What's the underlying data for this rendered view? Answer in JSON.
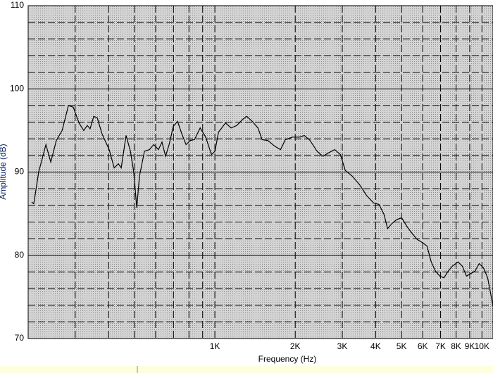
{
  "chart_data": {
    "type": "line",
    "x_label": "Frequency (Hz)",
    "y_label": "Amplitude (dB)",
    "x_scale": "log",
    "color": "#000000",
    "xlim": [
      200,
      11000
    ],
    "ylim": [
      70,
      110
    ],
    "xticks": [
      {
        "value": 1000,
        "label": "1K"
      },
      {
        "value": 2000,
        "label": "2K"
      },
      {
        "value": 3000,
        "label": "3K"
      },
      {
        "value": 4000,
        "label": "4K"
      },
      {
        "value": 5000,
        "label": "5K"
      },
      {
        "value": 6000,
        "label": "6K"
      },
      {
        "value": 7000,
        "label": "7K"
      },
      {
        "value": 8000,
        "label": "8K"
      },
      {
        "value": 9000,
        "label": "9K"
      },
      {
        "value": 10000,
        "label": "10K"
      }
    ],
    "x_minor_ticks": [
      200,
      300,
      400,
      500,
      600,
      700,
      800,
      900
    ],
    "yticks": [
      70,
      80,
      90,
      100,
      110
    ],
    "y_minor_ticks": [
      72,
      74,
      76,
      78,
      82,
      84,
      86,
      88,
      92,
      94,
      96,
      98,
      102,
      104,
      106,
      108
    ],
    "grid": true,
    "x": [
      206,
      210,
      219,
      233,
      243,
      255,
      268,
      283,
      295,
      310,
      323,
      333,
      341,
      352,
      363,
      378,
      402,
      420,
      435,
      446,
      465,
      483,
      497,
      510,
      522,
      545,
      569,
      590,
      615,
      634,
      654,
      674,
      699,
      725,
      752,
      780,
      809,
      839,
      881,
      924,
      971,
      1001,
      1032,
      1096,
      1151,
      1208,
      1268,
      1315,
      1381,
      1450,
      1503,
      1578,
      1677,
      1761,
      1837,
      1952,
      2074,
      2164,
      2272,
      2414,
      2535,
      2662,
      2810,
      2952,
      3078,
      3272,
      3478,
      3696,
      3928,
      4122,
      4300,
      4432,
      4596,
      4798,
      5004,
      5254,
      5484,
      5722,
      6006,
      6228,
      6460,
      6700,
      6950,
      7208,
      7476,
      7754,
      8140,
      8440,
      8756,
      9078,
      9416,
      9766,
      10126,
      10502,
      11000
    ],
    "values": [
      86.4,
      86.2,
      90.0,
      93.3,
      91.2,
      93.8,
      95.0,
      98.0,
      97.8,
      95.9,
      95.0,
      95.6,
      95.2,
      96.7,
      96.5,
      94.6,
      92.7,
      90.5,
      91.0,
      90.5,
      94.4,
      92.5,
      90.0,
      85.7,
      89.5,
      92.5,
      92.7,
      93.3,
      92.7,
      93.6,
      91.9,
      93.3,
      95.5,
      96.1,
      94.6,
      93.3,
      93.8,
      93.9,
      95.3,
      94.2,
      92.1,
      92.5,
      94.8,
      95.9,
      95.3,
      95.6,
      96.3,
      96.7,
      96.1,
      95.3,
      93.9,
      93.8,
      93.1,
      92.7,
      93.9,
      94.2,
      94.2,
      94.4,
      93.8,
      92.5,
      91.9,
      92.3,
      92.7,
      92.1,
      90.2,
      89.5,
      88.5,
      87.2,
      86.3,
      86.1,
      84.9,
      83.2,
      83.8,
      84.3,
      84.5,
      83.4,
      82.6,
      81.9,
      81.5,
      81.1,
      79.2,
      78.1,
      77.5,
      77.3,
      78.1,
      78.7,
      79.2,
      78.7,
      77.5,
      77.8,
      78.1,
      79.0,
      78.5,
      77.3,
      73.9
    ]
  }
}
